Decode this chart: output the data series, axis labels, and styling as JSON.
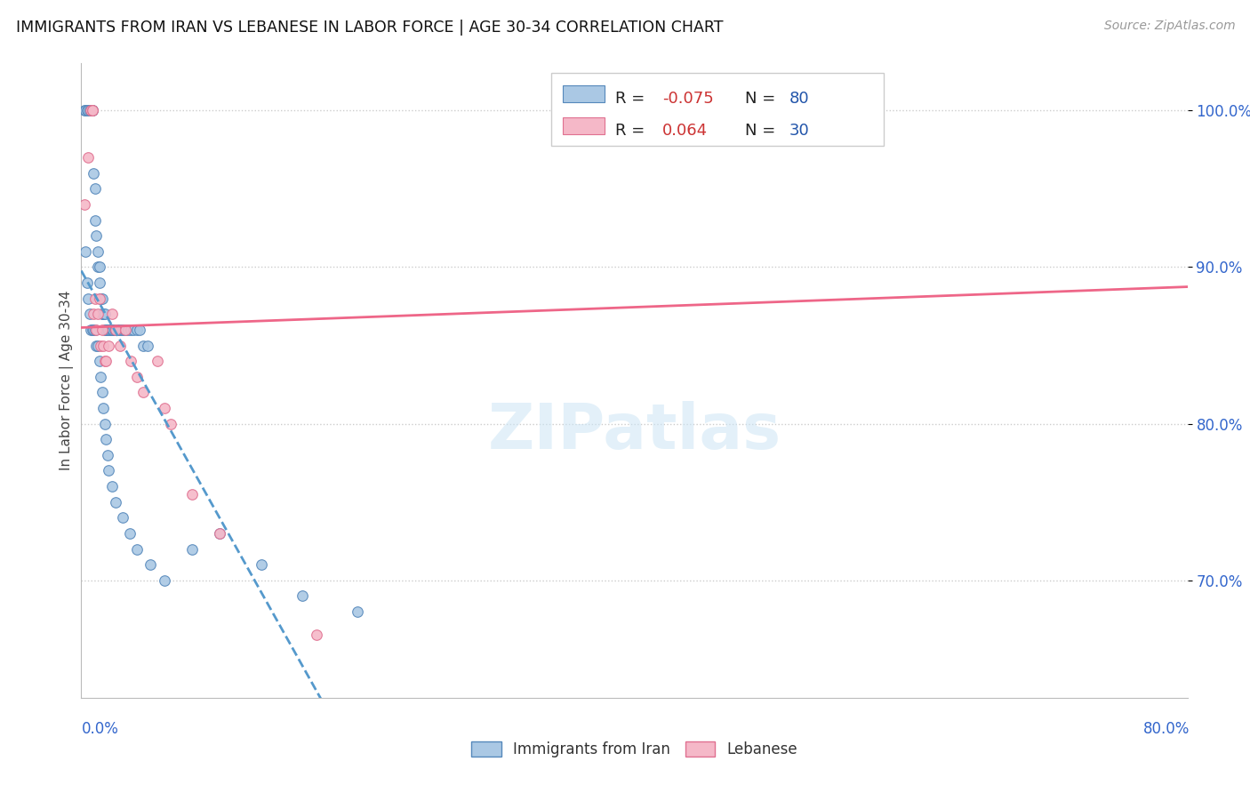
{
  "title": "IMMIGRANTS FROM IRAN VS LEBANESE IN LABOR FORCE | AGE 30-34 CORRELATION CHART",
  "source": "Source: ZipAtlas.com",
  "ylabel": "In Labor Force | Age 30-34",
  "y_ticks": [
    0.7,
    0.8,
    0.9,
    1.0
  ],
  "y_tick_labels": [
    "70.0%",
    "80.0%",
    "90.0%",
    "100.0%"
  ],
  "x_range": [
    0.0,
    0.8
  ],
  "y_range": [
    0.625,
    1.03
  ],
  "iran_R": -0.075,
  "iran_N": 80,
  "lebanese_R": 0.064,
  "lebanese_N": 30,
  "iran_color": "#aac8e4",
  "iran_edge_color": "#5588bb",
  "lebanese_color": "#f5b8c8",
  "lebanese_edge_color": "#e07090",
  "trend_iran_color": "#5599cc",
  "trend_lebanese_color": "#ee6688",
  "watermark": "ZIPatlas",
  "iran_x": [
    0.002,
    0.003,
    0.004,
    0.005,
    0.006,
    0.007,
    0.008,
    0.008,
    0.009,
    0.01,
    0.01,
    0.011,
    0.012,
    0.012,
    0.013,
    0.013,
    0.014,
    0.014,
    0.015,
    0.015,
    0.016,
    0.016,
    0.017,
    0.017,
    0.018,
    0.018,
    0.019,
    0.019,
    0.02,
    0.02,
    0.021,
    0.022,
    0.022,
    0.023,
    0.024,
    0.025,
    0.026,
    0.027,
    0.028,
    0.029,
    0.03,
    0.031,
    0.032,
    0.034,
    0.036,
    0.038,
    0.04,
    0.042,
    0.045,
    0.048,
    0.003,
    0.004,
    0.005,
    0.006,
    0.007,
    0.008,
    0.009,
    0.01,
    0.011,
    0.012,
    0.013,
    0.014,
    0.015,
    0.016,
    0.017,
    0.018,
    0.019,
    0.02,
    0.022,
    0.025,
    0.03,
    0.035,
    0.04,
    0.05,
    0.06,
    0.08,
    0.1,
    0.13,
    0.16,
    0.2
  ],
  "iran_y": [
    1.0,
    1.0,
    1.0,
    1.0,
    1.0,
    1.0,
    1.0,
    1.0,
    0.96,
    0.95,
    0.93,
    0.92,
    0.91,
    0.9,
    0.9,
    0.89,
    0.88,
    0.88,
    0.88,
    0.87,
    0.87,
    0.87,
    0.87,
    0.86,
    0.86,
    0.86,
    0.86,
    0.86,
    0.86,
    0.86,
    0.86,
    0.86,
    0.86,
    0.86,
    0.86,
    0.86,
    0.86,
    0.86,
    0.86,
    0.86,
    0.86,
    0.86,
    0.86,
    0.86,
    0.86,
    0.86,
    0.86,
    0.86,
    0.85,
    0.85,
    0.91,
    0.89,
    0.88,
    0.87,
    0.86,
    0.86,
    0.86,
    0.86,
    0.85,
    0.85,
    0.84,
    0.83,
    0.82,
    0.81,
    0.8,
    0.79,
    0.78,
    0.77,
    0.76,
    0.75,
    0.74,
    0.73,
    0.72,
    0.71,
    0.7,
    0.72,
    0.73,
    0.71,
    0.69,
    0.68
  ],
  "lebanese_x": [
    0.002,
    0.005,
    0.007,
    0.008,
    0.008,
    0.009,
    0.01,
    0.011,
    0.012,
    0.013,
    0.014,
    0.015,
    0.016,
    0.017,
    0.018,
    0.02,
    0.022,
    0.025,
    0.028,
    0.032,
    0.036,
    0.04,
    0.045,
    0.055,
    0.06,
    0.065,
    0.08,
    0.1,
    0.17,
    0.55
  ],
  "lebanese_y": [
    0.94,
    0.97,
    1.0,
    1.0,
    1.0,
    0.87,
    0.88,
    0.86,
    0.87,
    0.88,
    0.85,
    0.86,
    0.85,
    0.84,
    0.84,
    0.85,
    0.87,
    0.86,
    0.85,
    0.86,
    0.84,
    0.83,
    0.82,
    0.84,
    0.81,
    0.8,
    0.755,
    0.73,
    0.665,
    1.0
  ],
  "iran_trend_x": [
    0.0,
    0.22
  ],
  "lebanese_trend_x": [
    0.0,
    0.8
  ]
}
